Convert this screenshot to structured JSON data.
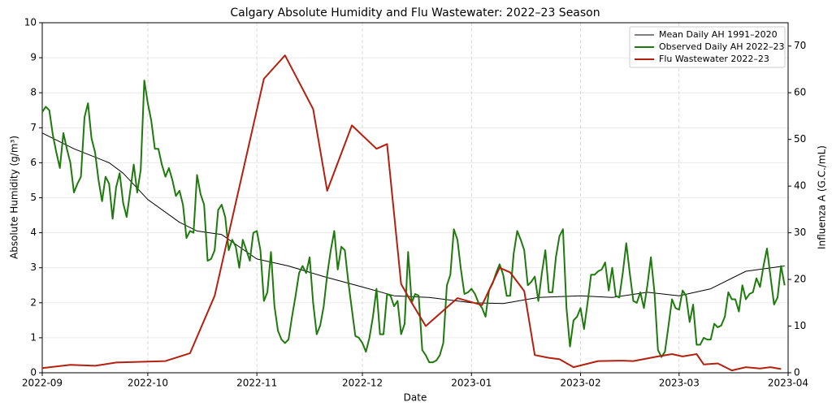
{
  "chart_data": {
    "type": "line",
    "title": "Calgary Absolute Humidity and Flu Wastewater: 2022–23 Season",
    "xlabel": "Date",
    "ylabel": "Absolute Humidity (g/m³)",
    "y2label": "Influenza A (G.C./mL)",
    "xlim": [
      "2022-09-01",
      "2023-04-01"
    ],
    "xticks": [
      "2022-09",
      "2022-10",
      "2022-11",
      "2022-12",
      "2023-01",
      "2023-02",
      "2023-03",
      "2023-04"
    ],
    "ylim": [
      0,
      10
    ],
    "yticks": [
      0,
      1,
      2,
      3,
      4,
      5,
      6,
      7,
      8,
      9,
      10
    ],
    "y2lim": [
      0,
      75
    ],
    "y2ticks": [
      0,
      10,
      20,
      30,
      40,
      50,
      60,
      70
    ],
    "grid": true,
    "legend": "upper right",
    "series": [
      {
        "name": "Mean Daily AH 1991–2020",
        "color": "#000000",
        "width": 1,
        "x": [
          "2022-09-01",
          "2022-09-10",
          "2022-09-20",
          "2022-09-24",
          "2022-10-01",
          "2022-10-10",
          "2022-10-15",
          "2022-10-22",
          "2022-11-01",
          "2022-11-10",
          "2022-11-20",
          "2022-12-01",
          "2022-12-10",
          "2022-12-20",
          "2023-01-01",
          "2023-01-10",
          "2023-01-20",
          "2023-02-01",
          "2023-02-10",
          "2023-02-20",
          "2023-03-01",
          "2023-03-10",
          "2023-03-20",
          "2023-03-31"
        ],
        "values": [
          6.85,
          6.4,
          6.0,
          5.7,
          4.95,
          4.3,
          4.05,
          3.95,
          3.25,
          3.05,
          2.75,
          2.45,
          2.2,
          2.15,
          2.0,
          1.98,
          2.15,
          2.2,
          2.15,
          2.3,
          2.2,
          2.4,
          2.9,
          3.05
        ]
      },
      {
        "name": "Observed Daily AH 2022–23",
        "color": "#1e7a0c",
        "width": 2,
        "x": [
          "2022-09-01",
          "2022-09-02",
          "2022-09-03",
          "2022-09-04",
          "2022-09-05",
          "2022-09-06",
          "2022-09-07",
          "2022-09-08",
          "2022-09-09",
          "2022-09-10",
          "2022-09-11",
          "2022-09-12",
          "2022-09-13",
          "2022-09-14",
          "2022-09-15",
          "2022-09-16",
          "2022-09-17",
          "2022-09-18",
          "2022-09-19",
          "2022-09-20",
          "2022-09-21",
          "2022-09-22",
          "2022-09-23",
          "2022-09-24",
          "2022-09-25",
          "2022-09-26",
          "2022-09-27",
          "2022-09-28",
          "2022-09-29",
          "2022-09-30",
          "2022-10-01",
          "2022-10-02",
          "2022-10-03",
          "2022-10-04",
          "2022-10-05",
          "2022-10-06",
          "2022-10-07",
          "2022-10-08",
          "2022-10-09",
          "2022-10-10",
          "2022-10-11",
          "2022-10-12",
          "2022-10-13",
          "2022-10-14",
          "2022-10-15",
          "2022-10-16",
          "2022-10-17",
          "2022-10-18",
          "2022-10-19",
          "2022-10-20",
          "2022-10-21",
          "2022-10-22",
          "2022-10-23",
          "2022-10-24",
          "2022-10-25",
          "2022-10-26",
          "2022-10-27",
          "2022-10-28",
          "2022-10-29",
          "2022-10-30",
          "2022-10-31",
          "2022-11-01",
          "2022-11-02",
          "2022-11-03",
          "2022-11-04",
          "2022-11-05",
          "2022-11-06",
          "2022-11-07",
          "2022-11-08",
          "2022-11-09",
          "2022-11-10",
          "2022-11-11",
          "2022-11-12",
          "2022-11-13",
          "2022-11-14",
          "2022-11-15",
          "2022-11-16",
          "2022-11-17",
          "2022-11-18",
          "2022-11-19",
          "2022-11-20",
          "2022-11-21",
          "2022-11-22",
          "2022-11-23",
          "2022-11-24",
          "2022-11-25",
          "2022-11-26",
          "2022-11-27",
          "2022-11-28",
          "2022-11-29",
          "2022-11-30",
          "2022-12-01",
          "2022-12-02",
          "2022-12-03",
          "2022-12-04",
          "2022-12-05",
          "2022-12-06",
          "2022-12-07",
          "2022-12-08",
          "2022-12-09",
          "2022-12-10",
          "2022-12-11",
          "2022-12-12",
          "2022-12-13",
          "2022-12-14",
          "2022-12-15",
          "2022-12-16",
          "2022-12-17",
          "2022-12-18",
          "2022-12-19",
          "2022-12-20",
          "2022-12-21",
          "2022-12-22",
          "2022-12-23",
          "2022-12-24",
          "2022-12-25",
          "2022-12-26",
          "2022-12-27",
          "2022-12-28",
          "2022-12-29",
          "2022-12-30",
          "2022-12-31",
          "2023-01-01",
          "2023-01-02",
          "2023-01-03",
          "2023-01-04",
          "2023-01-05",
          "2023-01-06",
          "2023-01-07",
          "2023-01-08",
          "2023-01-09",
          "2023-01-10",
          "2023-01-11",
          "2023-01-12",
          "2023-01-13",
          "2023-01-14",
          "2023-01-15",
          "2023-01-16",
          "2023-01-17",
          "2023-01-18",
          "2023-01-19",
          "2023-01-20",
          "2023-01-21",
          "2023-01-22",
          "2023-01-23",
          "2023-01-24",
          "2023-01-25",
          "2023-01-26",
          "2023-01-27",
          "2023-01-28",
          "2023-01-29",
          "2023-01-30",
          "2023-01-31",
          "2023-02-01",
          "2023-02-02",
          "2023-02-03",
          "2023-02-04",
          "2023-02-05",
          "2023-02-06",
          "2023-02-07",
          "2023-02-08",
          "2023-02-09",
          "2023-02-10",
          "2023-02-11",
          "2023-02-12",
          "2023-02-13",
          "2023-02-14",
          "2023-02-15",
          "2023-02-16",
          "2023-02-17",
          "2023-02-18",
          "2023-02-19",
          "2023-02-20",
          "2023-02-21",
          "2023-02-22",
          "2023-02-23",
          "2023-02-24",
          "2023-02-25",
          "2023-02-26",
          "2023-02-27",
          "2023-02-28",
          "2023-03-01",
          "2023-03-02",
          "2023-03-03",
          "2023-03-04",
          "2023-03-05",
          "2023-03-06",
          "2023-03-07",
          "2023-03-08",
          "2023-03-09",
          "2023-03-10",
          "2023-03-11",
          "2023-03-12",
          "2023-03-13",
          "2023-03-14",
          "2023-03-15",
          "2023-03-16",
          "2023-03-17",
          "2023-03-18",
          "2023-03-19",
          "2023-03-20",
          "2023-03-21",
          "2023-03-22",
          "2023-03-23",
          "2023-03-24",
          "2023-03-25",
          "2023-03-26",
          "2023-03-27",
          "2023-03-28",
          "2023-03-29",
          "2023-03-30",
          "2023-03-31"
        ],
        "values": [
          7.45,
          7.6,
          7.5,
          6.8,
          6.3,
          5.85,
          6.85,
          6.4,
          6.0,
          5.15,
          5.4,
          5.6,
          7.3,
          7.7,
          6.7,
          6.3,
          5.5,
          4.9,
          5.6,
          5.4,
          4.4,
          5.3,
          5.7,
          4.85,
          4.45,
          5.2,
          5.95,
          5.15,
          5.8,
          8.35,
          7.7,
          7.2,
          6.4,
          6.4,
          5.95,
          5.6,
          5.85,
          5.5,
          5.05,
          5.2,
          4.8,
          3.85,
          4.05,
          4.0,
          5.65,
          5.1,
          4.8,
          3.2,
          3.25,
          3.5,
          4.65,
          4.8,
          4.45,
          3.5,
          3.8,
          3.6,
          3.0,
          3.8,
          3.5,
          3.2,
          4.0,
          4.05,
          3.5,
          2.05,
          2.3,
          3.45,
          1.9,
          1.2,
          0.95,
          0.85,
          0.95,
          1.6,
          2.2,
          2.85,
          3.05,
          2.85,
          3.3,
          2.0,
          1.1,
          1.35,
          1.9,
          2.8,
          3.5,
          4.05,
          2.95,
          3.6,
          3.5,
          2.6,
          1.8,
          1.05,
          1.0,
          0.85,
          0.6,
          1.0,
          1.6,
          2.4,
          1.1,
          1.1,
          2.25,
          2.2,
          1.9,
          2.05,
          1.1,
          1.4,
          3.45,
          2.0,
          2.25,
          2.2,
          0.65,
          0.5,
          0.3,
          0.3,
          0.35,
          0.5,
          0.85,
          2.5,
          2.8,
          4.1,
          3.8,
          2.95,
          2.25,
          2.3,
          2.4,
          2.25,
          2.0,
          1.85,
          1.6,
          2.35,
          2.55,
          2.85,
          3.1,
          2.8,
          2.2,
          2.2,
          3.4,
          4.05,
          3.8,
          3.5,
          2.5,
          2.6,
          2.75,
          2.05,
          2.85,
          3.5,
          2.3,
          2.3,
          3.3,
          3.9,
          4.1,
          1.85,
          0.75,
          1.5,
          1.6,
          1.85,
          1.25,
          2.0,
          2.8,
          2.8,
          2.9,
          2.95,
          3.15,
          2.35,
          3.0,
          2.2,
          2.15,
          2.85,
          3.7,
          2.85,
          2.05,
          2.0,
          2.3,
          1.85,
          2.5,
          3.3,
          2.3,
          0.65,
          0.45,
          0.6,
          1.35,
          2.1,
          1.85,
          1.8,
          2.35,
          2.2,
          1.45,
          1.95,
          0.8,
          0.8,
          1.0,
          0.95,
          0.95,
          1.4,
          1.3,
          1.35,
          1.6,
          2.3,
          2.1,
          2.1,
          1.75,
          2.5,
          2.1,
          2.25,
          2.3,
          2.7,
          2.45,
          3.05,
          3.55,
          2.75,
          1.95,
          2.15,
          3.05,
          2.5
        ]
      },
      {
        "name": "Flu Wastewater 2022–23",
        "color": "#b3200f",
        "width": 2,
        "axis": "y2",
        "x": [
          "2022-09-01",
          "2022-09-09",
          "2022-09-16",
          "2022-09-22",
          "2022-10-06",
          "2022-10-13",
          "2022-10-20",
          "2022-11-03",
          "2022-11-09",
          "2022-11-17",
          "2022-11-21",
          "2022-11-28",
          "2022-12-05",
          "2022-12-08",
          "2022-12-12",
          "2022-12-15",
          "2022-12-19",
          "2022-12-28",
          "2023-01-04",
          "2023-01-09",
          "2023-01-12",
          "2023-01-16",
          "2023-01-19",
          "2023-01-23",
          "2023-01-26",
          "2023-01-30",
          "2023-02-06",
          "2023-02-13",
          "2023-02-16",
          "2023-02-23",
          "2023-02-27",
          "2023-03-02",
          "2023-03-06",
          "2023-03-08",
          "2023-03-12",
          "2023-03-16",
          "2023-03-20",
          "2023-03-24",
          "2023-03-27",
          "2023-03-30"
        ],
        "values": [
          1,
          1.7,
          1.5,
          2.2,
          2.5,
          4.2,
          16.5,
          63,
          68,
          56.5,
          39,
          53,
          48,
          49,
          19,
          15,
          10,
          16,
          14.5,
          22.5,
          21.5,
          17.5,
          3.8,
          3.2,
          2.9,
          1.2,
          2.5,
          2.6,
          2.5,
          3.5,
          4.0,
          3.5,
          4.0,
          1.8,
          2.0,
          0.5,
          1.2,
          0.9,
          1.2,
          0.8
        ]
      }
    ]
  }
}
